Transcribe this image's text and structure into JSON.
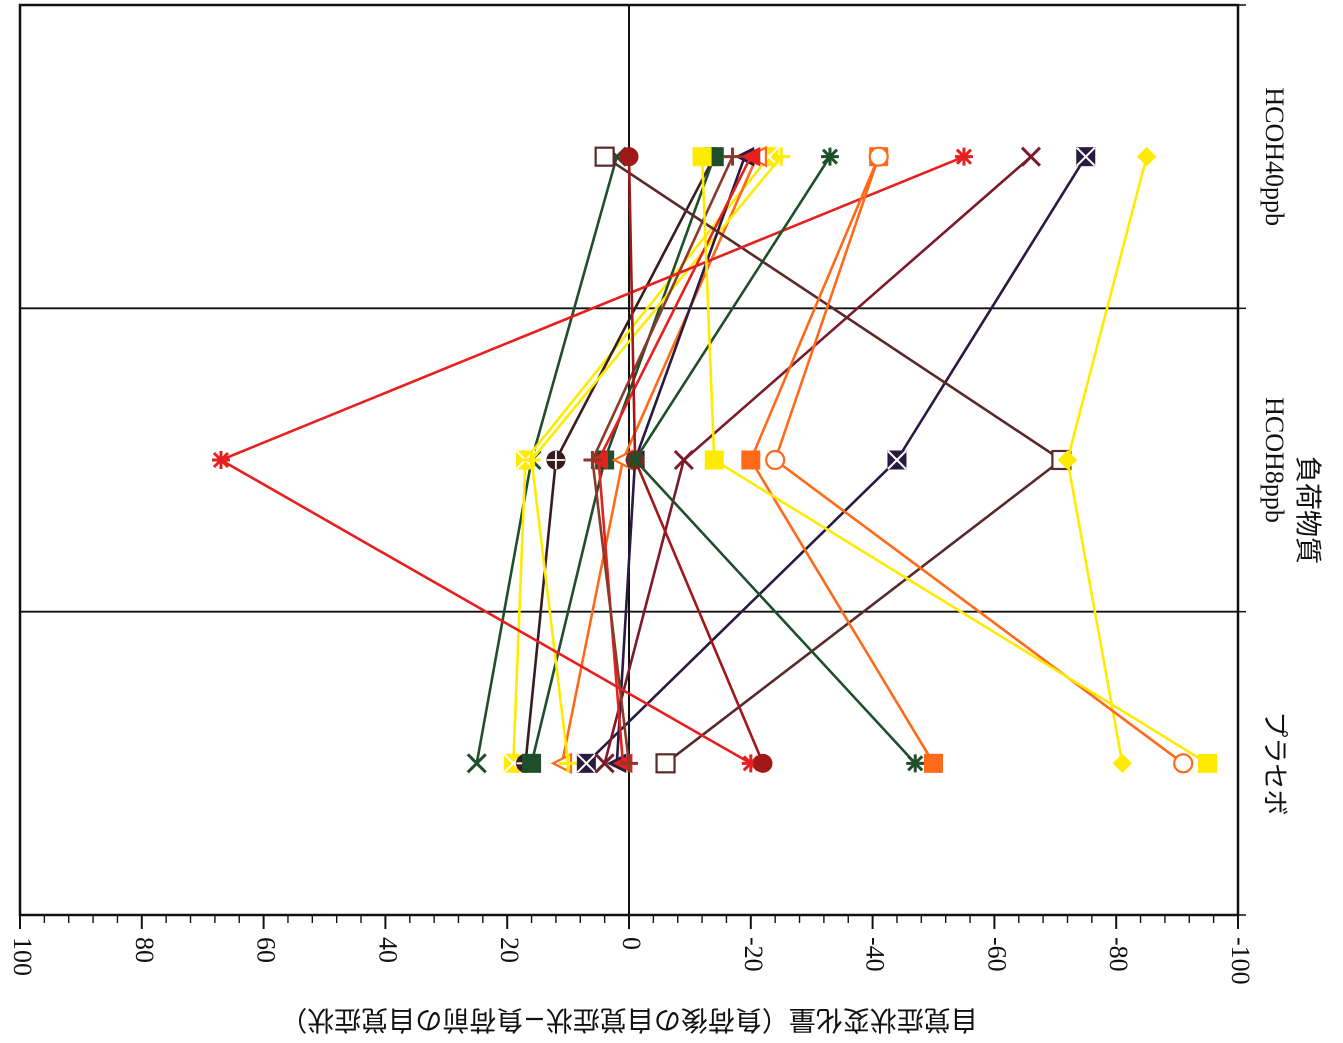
{
  "chart_data": {
    "type": "line",
    "orientation": "rotated-90-clockwise",
    "title": "",
    "xlabel": "負荷物質",
    "ylabel": "自覚症状変化量（負荷後の自覚症状−負荷前の自覚症状）",
    "categories": [
      "プラセボ",
      "HCOH8ppb",
      "HCOH40ppb"
    ],
    "ylim": [
      -100,
      100
    ],
    "yticks": [
      100,
      80,
      60,
      40,
      20,
      0,
      -20,
      -40,
      -60,
      -80,
      -100
    ],
    "ytick_labels": [
      "100",
      "80",
      "60",
      "40",
      "20",
      "0",
      "-20",
      "-40",
      "-60",
      "-80",
      "-100"
    ],
    "grid": true,
    "legend": "none",
    "series": [
      {
        "values": [
          25,
          16,
          2
        ],
        "color": "#1f4f2a",
        "marker": "x"
      },
      {
        "values": [
          19,
          17,
          -23
        ],
        "color": "#ffeb00",
        "marker": "square-x"
      },
      {
        "values": [
          17,
          12,
          -14
        ],
        "color": "#3a1c1c",
        "marker": "circle-plus"
      },
      {
        "values": [
          16,
          4,
          -14
        ],
        "color": "#1f4f2a",
        "marker": "square"
      },
      {
        "values": [
          11,
          1,
          -21
        ],
        "color": "#ff6a1a",
        "marker": "triangle-open"
      },
      {
        "values": [
          10,
          16,
          -25
        ],
        "color": "#ffeb00",
        "marker": "plus"
      },
      {
        "values": [
          7,
          -44,
          -75
        ],
        "color": "#2b1a40",
        "marker": "square-x"
      },
      {
        "values": [
          4,
          -9,
          -66
        ],
        "color": "#7b1a2a",
        "marker": "x"
      },
      {
        "values": [
          2,
          -1,
          -19
        ],
        "color": "#2b1a40",
        "marker": "triangle"
      },
      {
        "values": [
          1,
          5,
          -20
        ],
        "color": "#e5201e",
        "marker": "triangle"
      },
      {
        "values": [
          0,
          6,
          -17
        ],
        "color": "#8b3a2a",
        "marker": "plus"
      },
      {
        "values": [
          -6,
          -71,
          4
        ],
        "color": "#5a2a2a",
        "marker": "square-open"
      },
      {
        "values": [
          -20,
          67,
          -55
        ],
        "color": "#e5201e",
        "marker": "star"
      },
      {
        "values": [
          -22,
          -1,
          0
        ],
        "color": "#a01818",
        "marker": "circle"
      },
      {
        "values": [
          -47,
          -1,
          -33
        ],
        "color": "#1f4f2a",
        "marker": "star"
      },
      {
        "values": [
          -50,
          -20,
          -41
        ],
        "color": "#ff6a1a",
        "marker": "square"
      },
      {
        "values": [
          -81,
          -72,
          -85
        ],
        "color": "#ffeb00",
        "marker": "diamond"
      },
      {
        "values": [
          -91,
          -24,
          -41
        ],
        "color": "#ff6a1a",
        "marker": "circle-open"
      },
      {
        "values": [
          -95,
          -14,
          -12
        ],
        "color": "#ffeb00",
        "marker": "square"
      }
    ]
  }
}
